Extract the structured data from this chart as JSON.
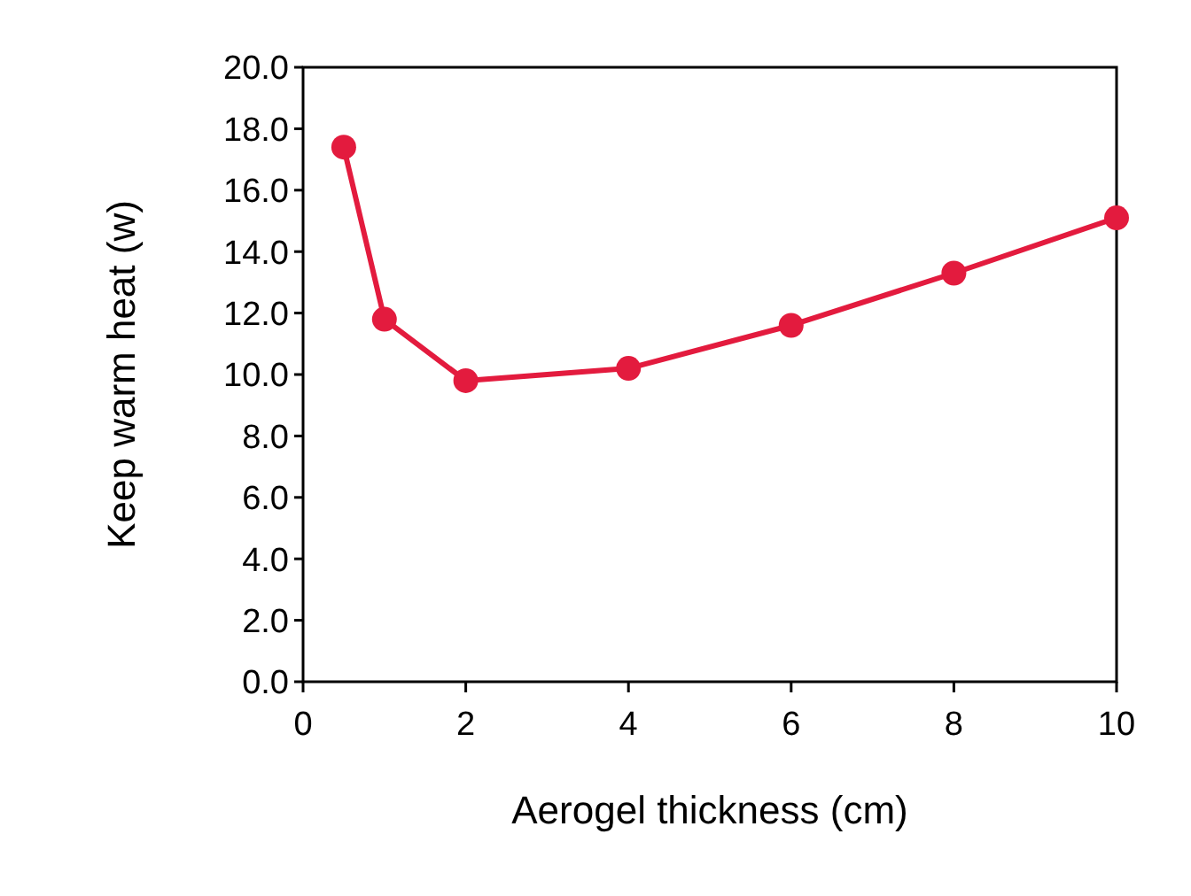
{
  "chart_data": {
    "type": "line",
    "xlabel": "Aerogel thickness (cm)",
    "ylabel": "Keep warm heat (w)",
    "x": [
      0.5,
      1,
      2,
      4,
      6,
      8,
      10
    ],
    "series": [
      {
        "color": "#e31b3e",
        "values": [
          17.4,
          11.8,
          9.8,
          10.2,
          11.6,
          13.3,
          15.1
        ]
      }
    ],
    "xlim": [
      0,
      10
    ],
    "xticks": [
      0,
      2,
      4,
      6,
      8,
      10
    ],
    "ylim": [
      0,
      20
    ],
    "yticks": [
      {
        "value": 0,
        "label": "0.0"
      },
      {
        "value": 2,
        "label": "2.0"
      },
      {
        "value": 4,
        "label": "4.0"
      },
      {
        "value": 6,
        "label": "6.0"
      },
      {
        "value": 8,
        "label": "8.0"
      },
      {
        "value": 10,
        "label": "10.0"
      },
      {
        "value": 12,
        "label": "12.0"
      },
      {
        "value": 14,
        "label": "14.0"
      },
      {
        "value": 16,
        "label": "16.0"
      },
      {
        "value": 18,
        "label": "18.0"
      },
      {
        "value": 20,
        "label": "20.0"
      }
    ],
    "marker": "circle",
    "line_style": "solid"
  }
}
